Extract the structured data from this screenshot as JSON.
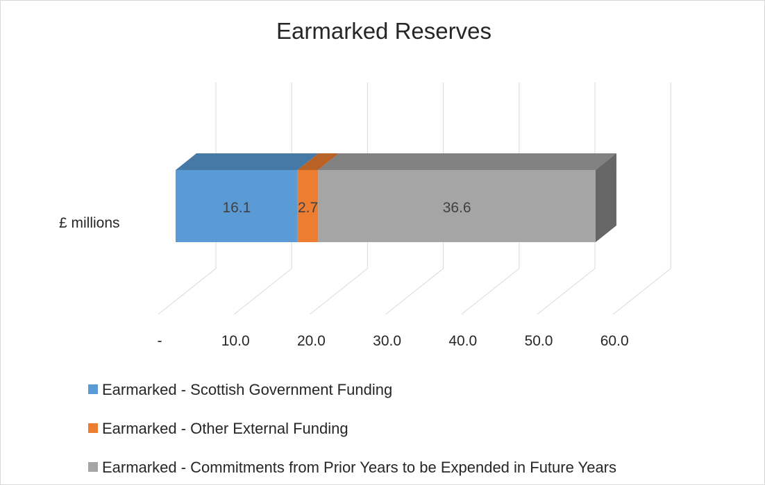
{
  "chart_data": {
    "type": "bar",
    "orientation": "horizontal",
    "stacked": true,
    "style_3d": true,
    "title": "Earmarked Reserves",
    "categories": [
      "£ millions"
    ],
    "series": [
      {
        "name": "Earmarked - Scottish Government Funding",
        "values": [
          16.1
        ],
        "color": "#5b9bd5",
        "label": "16.1"
      },
      {
        "name": "Earmarked - Other External Funding",
        "values": [
          2.7
        ],
        "color": "#ed7d31",
        "label": "2.7"
      },
      {
        "name": "Earmarked - Commitments from Prior Years to be Expended in Future Years",
        "values": [
          36.6
        ],
        "color": "#a5a5a5",
        "label": "36.6"
      }
    ],
    "xlim": [
      0,
      60
    ],
    "x_ticks": [
      0,
      10,
      20,
      30,
      40,
      50,
      60
    ],
    "x_tick_labels": [
      "-",
      "10.0",
      "20.0",
      "30.0",
      "40.0",
      "50.0",
      "60.0"
    ],
    "grid": true,
    "legend_position": "bottom-left"
  }
}
